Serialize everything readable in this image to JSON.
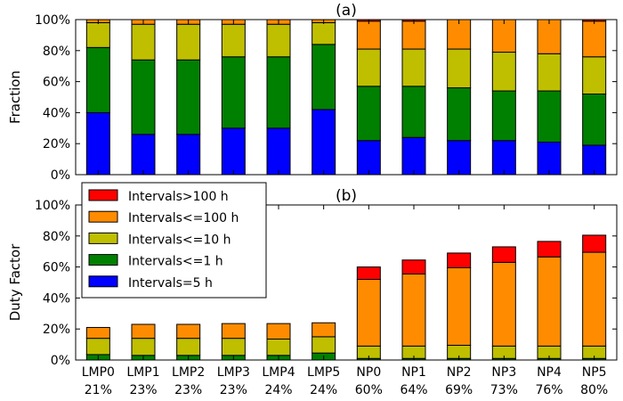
{
  "chart_data": [
    {
      "type": "bar",
      "stacked": true,
      "title": "(a)",
      "xlabel": "",
      "ylabel": "Fraction",
      "ylim": [
        0,
        100
      ],
      "yticks": [
        "0%",
        "20%",
        "40%",
        "60%",
        "80%",
        "100%"
      ],
      "categories": [
        "LMP0",
        "LMP1",
        "LMP2",
        "LMP3",
        "LMP4",
        "LMP5",
        "NP0",
        "NP1",
        "NP2",
        "NP3",
        "NP4",
        "NP5"
      ],
      "series": [
        {
          "name": "Intervals=5 h",
          "color": "#0000ff",
          "values": [
            40,
            26,
            26,
            30,
            30,
            42,
            22,
            24,
            22,
            22,
            21,
            19
          ]
        },
        {
          "name": "Intervals<=1 h",
          "color": "#008000",
          "values": [
            42,
            48,
            48,
            46,
            46,
            42,
            35,
            33,
            34,
            32,
            33,
            33
          ]
        },
        {
          "name": "Intervals<=10 h",
          "color": "#bfbf00",
          "values": [
            16,
            23,
            23,
            21,
            21,
            14,
            24,
            24,
            25,
            25,
            24,
            24
          ]
        },
        {
          "name": "Intervals<=100 h",
          "color": "#ff8c00",
          "values": [
            2,
            3,
            3,
            3,
            3,
            2,
            18,
            18,
            19,
            21,
            22,
            23
          ]
        },
        {
          "name": "Intervals>100 h",
          "color": "#ff0000",
          "values": [
            0,
            0,
            0,
            0,
            0,
            0,
            1,
            1,
            0,
            0,
            0,
            1
          ]
        }
      ]
    },
    {
      "type": "bar",
      "stacked": true,
      "title": "(b)",
      "xlabel": "",
      "ylabel": "Duty Factor",
      "ylim": [
        0,
        100
      ],
      "yticks": [
        "0%",
        "20%",
        "40%",
        "60%",
        "80%",
        "100%"
      ],
      "categories": [
        "LMP0",
        "LMP1",
        "LMP2",
        "LMP3",
        "LMP4",
        "LMP5",
        "NP0",
        "NP1",
        "NP2",
        "NP3",
        "NP4",
        "NP5"
      ],
      "category_sublabels": [
        "21%",
        "23%",
        "23%",
        "23%",
        "24%",
        "24%",
        "60%",
        "64%",
        "69%",
        "73%",
        "76%",
        "80%"
      ],
      "legend_position": "upper-left",
      "series": [
        {
          "name": "Intervals=5 h",
          "color": "#0000ff",
          "values": [
            0,
            0,
            0,
            0,
            0,
            0,
            0,
            0,
            0,
            0,
            0,
            0
          ]
        },
        {
          "name": "Intervals<=1 h",
          "color": "#008000",
          "values": [
            3.5,
            3,
            3,
            3,
            3,
            4.5,
            1,
            1,
            1,
            1,
            1,
            1
          ]
        },
        {
          "name": "Intervals<=10 h",
          "color": "#bfbf00",
          "values": [
            10.5,
            11,
            11,
            11,
            10.5,
            10.5,
            8,
            8,
            8.5,
            8,
            8,
            8
          ]
        },
        {
          "name": "Intervals<=100 h",
          "color": "#ff8c00",
          "values": [
            7,
            9,
            9,
            9.5,
            10,
            9,
            43,
            46.5,
            50,
            54,
            57.5,
            60.5
          ]
        },
        {
          "name": "Intervals>100 h",
          "color": "#ff0000",
          "values": [
            0,
            0,
            0,
            0,
            0,
            0,
            8,
            9,
            9.5,
            10,
            10,
            11
          ]
        }
      ]
    }
  ],
  "legend": {
    "entries": [
      {
        "label": "Intervals>100 h",
        "color": "#ff0000"
      },
      {
        "label": "Intervals<=100 h",
        "color": "#ff8c00"
      },
      {
        "label": "Intervals<=10 h",
        "color": "#bfbf00"
      },
      {
        "label": "Intervals<=1 h",
        "color": "#008000"
      },
      {
        "label": "Intervals=5 h",
        "color": "#0000ff"
      }
    ]
  }
}
